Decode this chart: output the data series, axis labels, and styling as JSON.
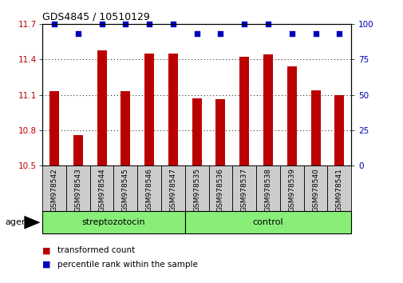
{
  "title": "GDS4845 / 10510129",
  "categories": [
    "GSM978542",
    "GSM978543",
    "GSM978544",
    "GSM978545",
    "GSM978546",
    "GSM978547",
    "GSM978535",
    "GSM978536",
    "GSM978537",
    "GSM978538",
    "GSM978539",
    "GSM978540",
    "GSM978541"
  ],
  "bar_values": [
    11.13,
    10.76,
    11.48,
    11.13,
    11.45,
    11.45,
    11.07,
    11.06,
    11.42,
    11.44,
    11.34,
    11.14,
    11.1
  ],
  "percentile_values": [
    100,
    93,
    100,
    100,
    100,
    100,
    93,
    93,
    100,
    100,
    93,
    93,
    93
  ],
  "bar_color": "#bb0000",
  "dot_color": "#0000bb",
  "ylim_left": [
    10.5,
    11.7
  ],
  "ylim_right": [
    0,
    100
  ],
  "yticks_left": [
    10.5,
    10.8,
    11.1,
    11.4,
    11.7
  ],
  "yticks_right": [
    0,
    25,
    50,
    75,
    100
  ],
  "group1_label": "streptozotocin",
  "group2_label": "control",
  "group1_count": 6,
  "group2_count": 7,
  "agent_label": "agent",
  "legend_bar_label": "transformed count",
  "legend_dot_label": "percentile rank within the sample",
  "tick_label_bg": "#cccccc",
  "group_bg": "#88ee77",
  "bar_width": 0.4
}
